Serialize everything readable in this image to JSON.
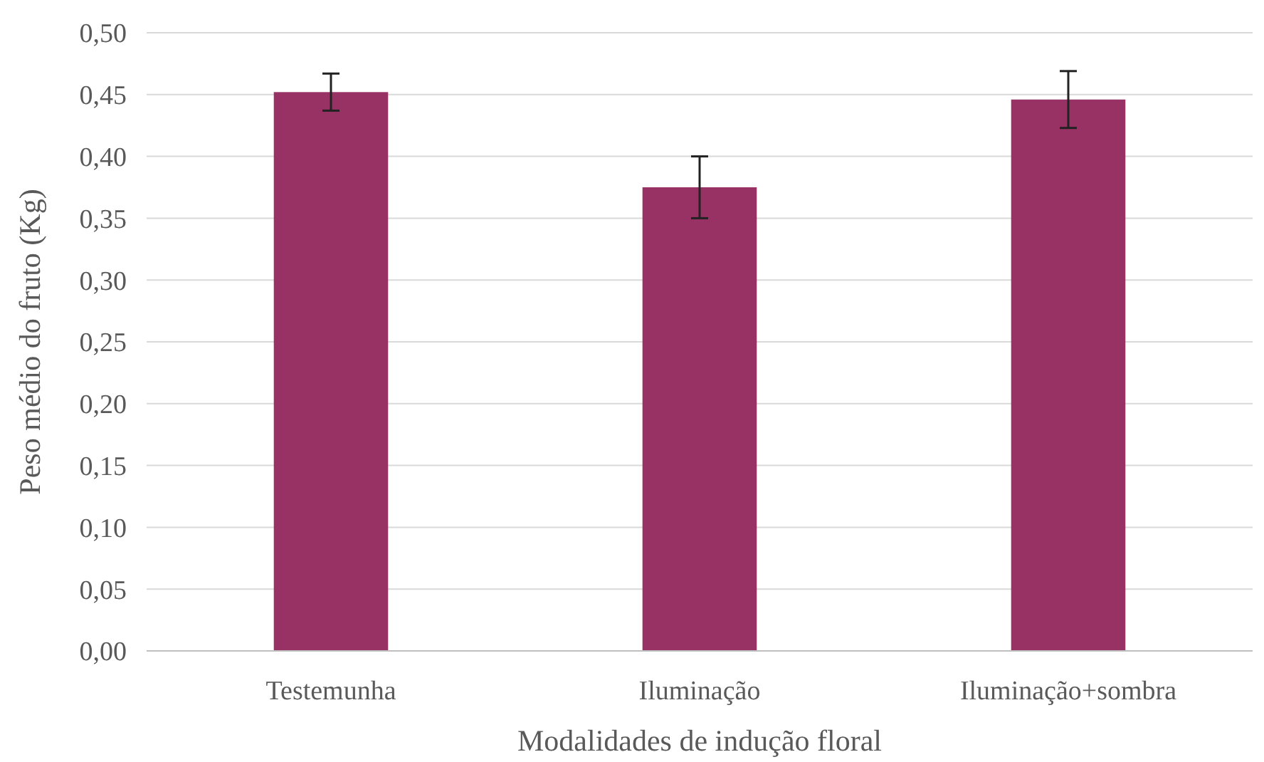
{
  "chart_data": {
    "type": "bar",
    "xlabel": "Modalidades de indução floral",
    "ylabel": "Peso médio do fruto (Kg)",
    "categories": [
      "Testemunha",
      "Iluminação",
      "Iluminação+sombra"
    ],
    "values": [
      0.452,
      0.375,
      0.446
    ],
    "errors": [
      0.015,
      0.025,
      0.023
    ],
    "color": "#983264",
    "ylim": [
      0,
      0.5
    ],
    "yticks": [
      {
        "value": 0,
        "label": "0,00"
      },
      {
        "value": 0.05,
        "label": "0,05"
      },
      {
        "value": 0.1,
        "label": "0,10"
      },
      {
        "value": 0.15,
        "label": "0,15"
      },
      {
        "value": 0.2,
        "label": "0,20"
      },
      {
        "value": 0.25,
        "label": "0,25"
      },
      {
        "value": 0.3,
        "label": "0,30"
      },
      {
        "value": 0.35,
        "label": "0,35"
      },
      {
        "value": 0.4,
        "label": "0,40"
      },
      {
        "value": 0.45,
        "label": "0,45"
      },
      {
        "value": 0.5,
        "label": "0,50"
      }
    ],
    "grid": "y"
  }
}
